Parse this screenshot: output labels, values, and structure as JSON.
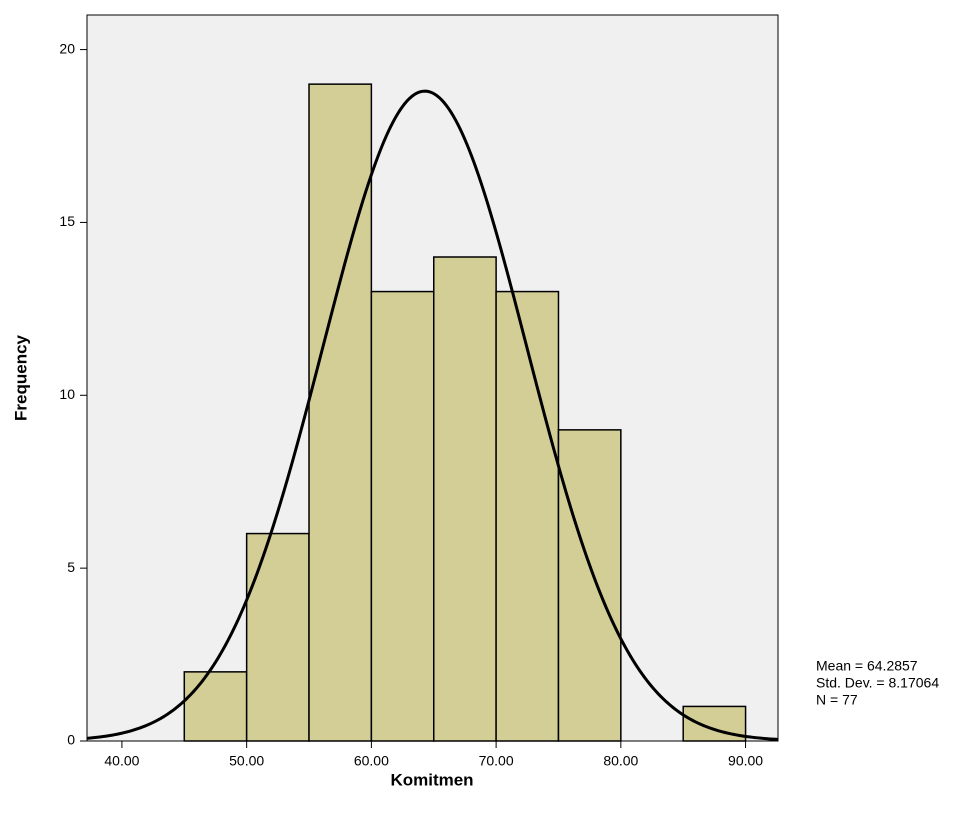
{
  "chart_data": {
    "type": "histogram",
    "x_label": "Komitmen",
    "y_label": "Frequency",
    "bins": [
      45,
      50,
      55,
      60,
      65,
      70,
      75,
      80,
      85,
      90
    ],
    "counts": [
      2,
      6,
      19,
      13,
      14,
      13,
      9,
      0,
      1
    ],
    "color": "#d3ce96",
    "xlim": [
      37.2,
      92.6
    ],
    "ylim": [
      0,
      21
    ],
    "xticks": [
      {
        "value": 40,
        "label": "40.00"
      },
      {
        "value": 50,
        "label": "50.00"
      },
      {
        "value": 60,
        "label": "60.00"
      },
      {
        "value": 70,
        "label": "70.00"
      },
      {
        "value": 80,
        "label": "80.00"
      },
      {
        "value": 90,
        "label": "90.00"
      }
    ],
    "yticks": [
      0,
      5,
      10,
      15,
      20
    ],
    "normal_curve": {
      "mean": 64.2857,
      "sd": 8.17064,
      "n": 77
    },
    "annotations": [
      "Mean = 64.2857",
      "Std. Dev. = 8.17064",
      "N = 77"
    ]
  }
}
